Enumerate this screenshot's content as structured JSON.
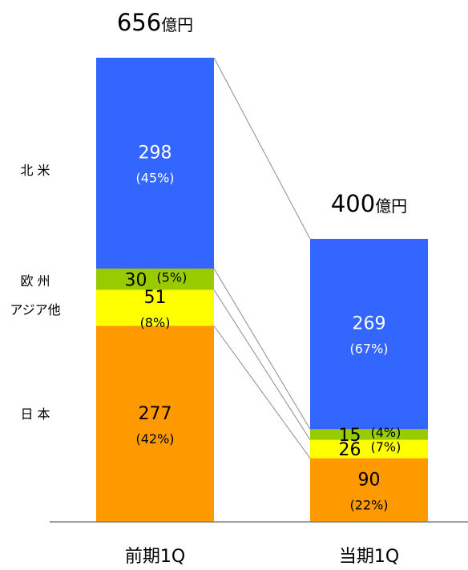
{
  "chart_data": {
    "type": "bar",
    "stacked": true,
    "categories": [
      "前期1Q",
      "当期1Q"
    ],
    "totals": [
      "656",
      "400"
    ],
    "total_unit": "億円",
    "row_labels": [
      "北 米",
      "欧 州",
      "アジア他",
      "日 本"
    ],
    "series": [
      {
        "name": "日 本",
        "values": [
          277,
          90
        ],
        "pct": [
          "(42%)",
          "(22%)"
        ]
      },
      {
        "name": "アジア他",
        "values": [
          51,
          26
        ],
        "pct": [
          "(8%)",
          "(7%)"
        ]
      },
      {
        "name": "欧 州",
        "values": [
          30,
          15
        ],
        "pct": [
          "(5%)",
          "(4%)"
        ]
      },
      {
        "name": "北 米",
        "values": [
          298,
          269
        ],
        "pct": [
          "(45%)",
          "(67%)"
        ]
      }
    ],
    "colors": {
      "日 本": "#ff9900",
      "アジア他": "#ffff00",
      "欧 州": "#99cc00",
      "北 米": "#3366ff"
    },
    "gridlines": false,
    "legend": "none"
  }
}
